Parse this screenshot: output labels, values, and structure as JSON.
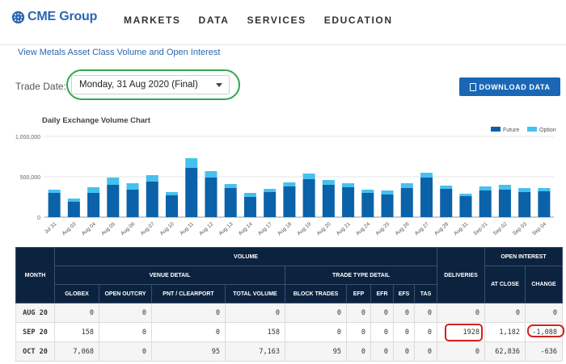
{
  "header": {
    "logo_text": "CME Group",
    "nav": [
      "MARKETS",
      "DATA",
      "SERVICES",
      "EDUCATION"
    ]
  },
  "link_metals": "View Metals Asset Class Volume and Open Interest",
  "trade_date": {
    "label": "Trade Date:",
    "value": "Monday, 31 Aug 2020 (Final)"
  },
  "download_label": "DOWNLOAD DATA",
  "chart_data": {
    "type": "bar",
    "stacked": true,
    "title": "Daily Exchange Volume Chart",
    "categories": [
      "Jul 31",
      "Aug 03",
      "Aug 04",
      "Aug 05",
      "Aug 06",
      "Aug 07",
      "Aug 10",
      "Aug 11",
      "Aug 12",
      "Aug 13",
      "Aug 14",
      "Aug 17",
      "Aug 18",
      "Aug 19",
      "Aug 20",
      "Aug 21",
      "Aug 24",
      "Aug 25",
      "Aug 26",
      "Aug 27",
      "Aug 28",
      "Aug 31",
      "Sep 01",
      "Sep 02",
      "Sep 03",
      "Sep 04"
    ],
    "series": [
      {
        "name": "Future",
        "color": "#0b62a9",
        "values": [
          300000,
          190000,
          300000,
          400000,
          340000,
          440000,
          270000,
          610000,
          490000,
          360000,
          250000,
          310000,
          380000,
          470000,
          400000,
          370000,
          300000,
          280000,
          360000,
          490000,
          350000,
          260000,
          330000,
          340000,
          310000,
          320000
        ]
      },
      {
        "name": "Option",
        "color": "#46c1ef",
        "values": [
          40000,
          40000,
          70000,
          90000,
          80000,
          80000,
          40000,
          120000,
          80000,
          50000,
          50000,
          40000,
          50000,
          70000,
          60000,
          50000,
          40000,
          50000,
          60000,
          60000,
          40000,
          30000,
          50000,
          60000,
          50000,
          40000
        ]
      }
    ],
    "y_ticks": [
      "0",
      "500,000",
      "1,000,000"
    ],
    "ylim": [
      0,
      1000000
    ],
    "grid": true,
    "legend_position": "top-right"
  },
  "table": {
    "group_volume": "VOLUME",
    "group_venue": "VENUE DETAIL",
    "group_trade": "TRADE TYPE DETAIL",
    "group_oi": "OPEN INTEREST",
    "col_month": "MONTH",
    "col_deliveries": "DELIVERIES",
    "col_at_close": "AT CLOSE",
    "col_change": "CHANGE",
    "sub_cols": [
      "GLOBEX",
      "OPEN OUTCRY",
      "PNT / CLEARPORT",
      "TOTAL VOLUME",
      "BLOCK TRADES",
      "EFP",
      "EFR",
      "EFS",
      "TAS"
    ],
    "rows": [
      {
        "month": "AUG 20",
        "cells": [
          "0",
          "0",
          "0",
          "0",
          "0",
          "0",
          "0",
          "0",
          "0",
          "0",
          "0",
          "0"
        ]
      },
      {
        "month": "SEP 20",
        "cells": [
          "158",
          "0",
          "0",
          "158",
          "0",
          "0",
          "0",
          "0",
          "0",
          "1928",
          "1,182",
          "-1,088"
        ]
      },
      {
        "month": "OCT 20",
        "cells": [
          "7,068",
          "0",
          "95",
          "7,163",
          "95",
          "0",
          "0",
          "0",
          "0",
          "0",
          "62,836",
          "-636"
        ]
      }
    ]
  }
}
